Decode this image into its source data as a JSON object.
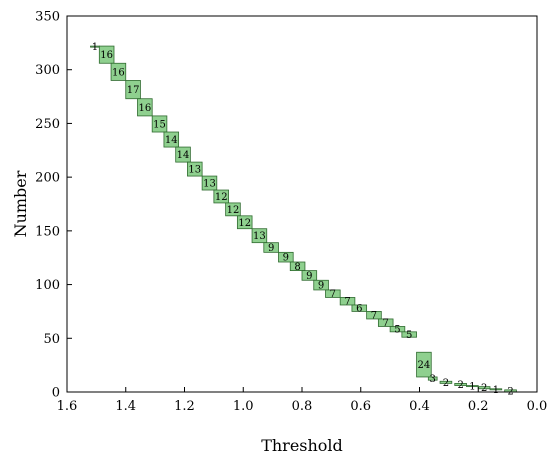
{
  "chart_data": {
    "type": "bar",
    "xlabel": "Threshold",
    "ylabel": "Number",
    "xlim": [
      1.6,
      0.0
    ],
    "ylim": [
      0,
      350
    ],
    "x_reversed": true,
    "x_ticks": [
      "1.6",
      "1.4",
      "1.2",
      "1.0",
      "0.8",
      "0.6",
      "0.4",
      "0.2",
      "0.0"
    ],
    "y_ticks": [
      "0",
      "50",
      "100",
      "150",
      "200",
      "250",
      "300",
      "350"
    ],
    "grid": false,
    "bar_color": "#8fd08f",
    "bars": [
      {
        "x_from": 1.52,
        "x_to": 1.49,
        "y_from": 321,
        "y_to": 322,
        "label": "1"
      },
      {
        "x_from": 1.49,
        "x_to": 1.44,
        "y_from": 306,
        "y_to": 322,
        "label": "16"
      },
      {
        "x_from": 1.45,
        "x_to": 1.4,
        "y_from": 290,
        "y_to": 306,
        "label": "16"
      },
      {
        "x_from": 1.4,
        "x_to": 1.35,
        "y_from": 273,
        "y_to": 290,
        "label": "17"
      },
      {
        "x_from": 1.36,
        "x_to": 1.31,
        "y_from": 257,
        "y_to": 273,
        "label": "16"
      },
      {
        "x_from": 1.31,
        "x_to": 1.26,
        "y_from": 242,
        "y_to": 257,
        "label": "15"
      },
      {
        "x_from": 1.27,
        "x_to": 1.22,
        "y_from": 228,
        "y_to": 242,
        "label": "14"
      },
      {
        "x_from": 1.23,
        "x_to": 1.18,
        "y_from": 214,
        "y_to": 228,
        "label": "14"
      },
      {
        "x_from": 1.19,
        "x_to": 1.14,
        "y_from": 201,
        "y_to": 214,
        "label": "13"
      },
      {
        "x_from": 1.14,
        "x_to": 1.09,
        "y_from": 188,
        "y_to": 201,
        "label": "13"
      },
      {
        "x_from": 1.1,
        "x_to": 1.05,
        "y_from": 176,
        "y_to": 188,
        "label": "12"
      },
      {
        "x_from": 1.06,
        "x_to": 1.01,
        "y_from": 164,
        "y_to": 176,
        "label": "12"
      },
      {
        "x_from": 1.02,
        "x_to": 0.97,
        "y_from": 152,
        "y_to": 164,
        "label": "12"
      },
      {
        "x_from": 0.97,
        "x_to": 0.92,
        "y_from": 139,
        "y_to": 152,
        "label": "13"
      },
      {
        "x_from": 0.93,
        "x_to": 0.88,
        "y_from": 130,
        "y_to": 139,
        "label": "9"
      },
      {
        "x_from": 0.88,
        "x_to": 0.83,
        "y_from": 121,
        "y_to": 130,
        "label": "9"
      },
      {
        "x_from": 0.84,
        "x_to": 0.79,
        "y_from": 113,
        "y_to": 121,
        "label": "8"
      },
      {
        "x_from": 0.8,
        "x_to": 0.75,
        "y_from": 104,
        "y_to": 113,
        "label": "9"
      },
      {
        "x_from": 0.76,
        "x_to": 0.71,
        "y_from": 95,
        "y_to": 104,
        "label": "9"
      },
      {
        "x_from": 0.72,
        "x_to": 0.67,
        "y_from": 88,
        "y_to": 95,
        "label": "7"
      },
      {
        "x_from": 0.67,
        "x_to": 0.62,
        "y_from": 81,
        "y_to": 88,
        "label": "7"
      },
      {
        "x_from": 0.63,
        "x_to": 0.58,
        "y_from": 75,
        "y_to": 81,
        "label": "6"
      },
      {
        "x_from": 0.58,
        "x_to": 0.53,
        "y_from": 68,
        "y_to": 75,
        "label": "7"
      },
      {
        "x_from": 0.54,
        "x_to": 0.49,
        "y_from": 61,
        "y_to": 68,
        "label": "7"
      },
      {
        "x_from": 0.5,
        "x_to": 0.45,
        "y_from": 56,
        "y_to": 61,
        "label": "5"
      },
      {
        "x_from": 0.46,
        "x_to": 0.41,
        "y_from": 51,
        "y_to": 56,
        "label": "5"
      },
      {
        "x_from": 0.41,
        "x_to": 0.36,
        "y_from": 14,
        "y_to": 37,
        "label": "24"
      },
      {
        "x_from": 0.37,
        "x_to": 0.34,
        "y_from": 11,
        "y_to": 14,
        "label": "3"
      },
      {
        "x_from": 0.33,
        "x_to": 0.29,
        "y_from": 8,
        "y_to": 10,
        "label": "2"
      },
      {
        "x_from": 0.28,
        "x_to": 0.24,
        "y_from": 6,
        "y_to": 8,
        "label": "2"
      },
      {
        "x_from": 0.24,
        "x_to": 0.2,
        "y_from": 5,
        "y_to": 6,
        "label": "1"
      },
      {
        "x_from": 0.2,
        "x_to": 0.16,
        "y_from": 3,
        "y_to": 5,
        "label": "2"
      },
      {
        "x_from": 0.16,
        "x_to": 0.12,
        "y_from": 2,
        "y_to": 3,
        "label": "1"
      },
      {
        "x_from": 0.11,
        "x_to": 0.07,
        "y_from": 0,
        "y_to": 2,
        "label": "2"
      }
    ]
  }
}
